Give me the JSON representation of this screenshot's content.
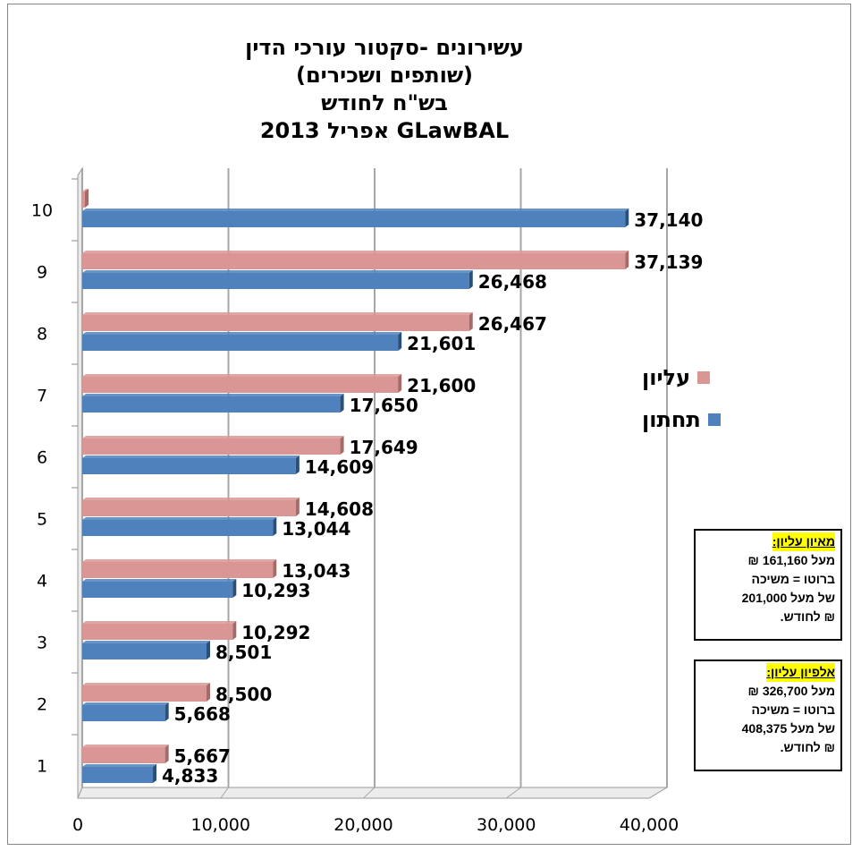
{
  "chart_data": {
    "type": "bar",
    "orientation": "horizontal",
    "title_lines": [
      "עשירונים -סקטור עורכי הדין",
      "(שותפים ושכירים)",
      "בש\"ח לחודש",
      "GLawBAL אפריל 2013"
    ],
    "categories": [
      "1",
      "2",
      "3",
      "4",
      "5",
      "6",
      "7",
      "8",
      "9",
      "10"
    ],
    "series": [
      {
        "name": "עליון",
        "color": "#d99694",
        "values": [
          5667,
          8500,
          10292,
          13043,
          14608,
          17649,
          21600,
          26467,
          37139,
          0
        ],
        "labels": [
          "5,667",
          "8,500",
          "10,292",
          "13,043",
          "14,608",
          "17,649",
          "21,600",
          "26,467",
          "37,139",
          ""
        ]
      },
      {
        "name": "תחתון",
        "color": "#4f81bd",
        "values": [
          4833,
          5668,
          8501,
          10293,
          13044,
          14609,
          17650,
          21601,
          26468,
          37140
        ],
        "labels": [
          "4,833",
          "5,668",
          "8,501",
          "10,293",
          "13,044",
          "14,609",
          "17,650",
          "21,601",
          "26,468",
          "37,140"
        ]
      }
    ],
    "xlim": [
      0,
      40000
    ],
    "xticks": [
      0,
      10000,
      20000,
      30000,
      40000
    ],
    "xtick_labels": [
      "0",
      "10,000",
      "20,000",
      "30,000",
      "40,000"
    ],
    "grid": true,
    "legend_position": "right"
  },
  "notes": [
    {
      "heading": "מאיון עליון:",
      "lines": [
        "מעל 161,160 ₪",
        "ברוטו = משיכה",
        "של מעל 201,000",
        "₪ לחודש."
      ]
    },
    {
      "heading": "אלפיון עליון:",
      "lines": [
        "מעל 326,700 ₪",
        "ברוטו = משיכה",
        "של מעל 408,375",
        "₪ לחודש."
      ]
    }
  ]
}
